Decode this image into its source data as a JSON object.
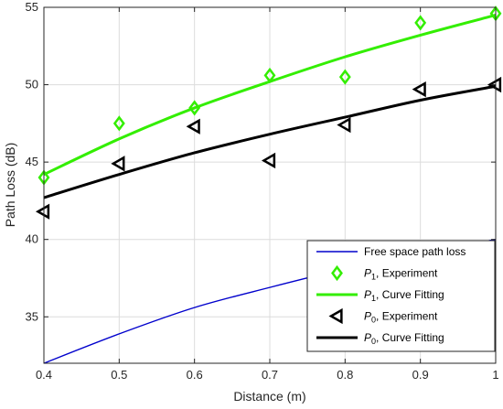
{
  "chart_data": {
    "type": "line",
    "xlabel": "Distance (m)",
    "ylabel": "Path Loss (dB)",
    "xlim": [
      0.4,
      1.0
    ],
    "ylim": [
      32,
      55
    ],
    "x_ticks": [
      0.4,
      0.5,
      0.6,
      0.7,
      0.8,
      0.9,
      1.0
    ],
    "x_tick_labels": [
      "0.4",
      "0.5",
      "0.6",
      "0.7",
      "0.8",
      "0.9",
      "1"
    ],
    "y_ticks": [
      35,
      40,
      45,
      50,
      55
    ],
    "y_tick_labels": [
      "35",
      "40",
      "45",
      "50",
      "55"
    ],
    "grid": true,
    "legend_position": "bottom-right",
    "series": [
      {
        "name": "Free space path loss",
        "legend_parts": [
          {
            "text": "Free space path loss"
          }
        ],
        "style": "line",
        "color": "#0000cc",
        "x": [
          0.4,
          0.5,
          0.6,
          0.7,
          0.8,
          0.9,
          1.0
        ],
        "y": [
          32.0,
          33.9,
          35.6,
          36.9,
          38.1,
          39.1,
          40.0
        ]
      },
      {
        "name": "P1, Experiment",
        "legend_parts": [
          {
            "text": "P"
          },
          {
            "text": "1",
            "sub": true
          },
          {
            "text": ", Experiment"
          }
        ],
        "style": "marker",
        "marker": "diamond",
        "color": "#33ee00",
        "x": [
          0.4,
          0.5,
          0.6,
          0.7,
          0.8,
          0.9,
          1.0
        ],
        "y": [
          44.0,
          47.5,
          48.5,
          50.6,
          50.5,
          54.0,
          54.6
        ]
      },
      {
        "name": "P1, Curve Fitting",
        "legend_parts": [
          {
            "text": "P"
          },
          {
            "text": "1",
            "sub": true
          },
          {
            "text": ", Curve Fitting"
          }
        ],
        "style": "line",
        "color": "#33ee00",
        "x": [
          0.4,
          0.5,
          0.6,
          0.7,
          0.8,
          0.9,
          1.0
        ],
        "y": [
          44.2,
          46.5,
          48.5,
          50.2,
          51.8,
          53.2,
          54.5
        ]
      },
      {
        "name": "P0, Experiment",
        "legend_parts": [
          {
            "text": "P"
          },
          {
            "text": "0",
            "sub": true
          },
          {
            "text": ", Experiment"
          }
        ],
        "style": "marker",
        "marker": "triangle-left",
        "color": "#000000",
        "x": [
          0.4,
          0.5,
          0.6,
          0.7,
          0.8,
          0.9,
          1.0
        ],
        "y": [
          41.8,
          44.9,
          47.3,
          45.1,
          47.4,
          49.7,
          50.0
        ]
      },
      {
        "name": "P0, Curve Fitting",
        "legend_parts": [
          {
            "text": "P"
          },
          {
            "text": "0",
            "sub": true
          },
          {
            "text": ", Curve Fitting"
          }
        ],
        "style": "line",
        "color": "#000000",
        "x": [
          0.4,
          0.5,
          0.6,
          0.7,
          0.8,
          0.9,
          1.0
        ],
        "y": [
          42.7,
          44.2,
          45.6,
          46.8,
          47.9,
          49.0,
          49.9
        ]
      }
    ]
  }
}
